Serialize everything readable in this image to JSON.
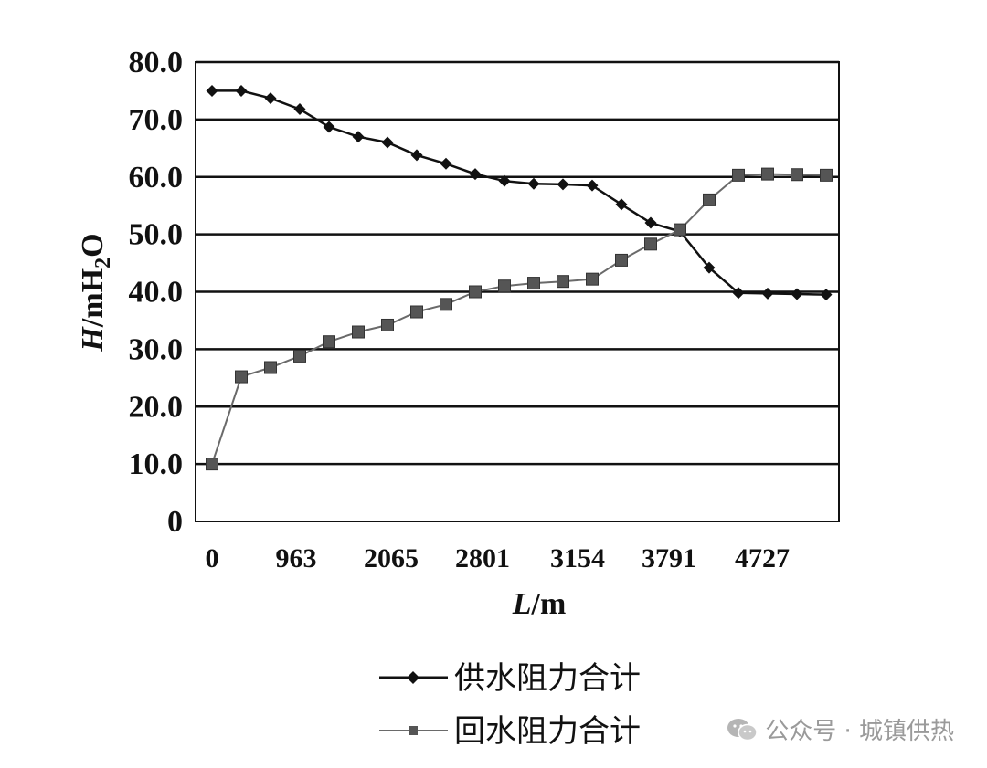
{
  "chart_data": {
    "type": "line",
    "ylim": [
      0,
      80
    ],
    "yticks": [
      "0",
      "10.0",
      "20.0",
      "30.0",
      "40.0",
      "50.0",
      "60.0",
      "70.0",
      "80.0"
    ],
    "xtick_labels": [
      "0",
      "963",
      "2065",
      "2801",
      "3154",
      "3791",
      "4727"
    ],
    "ylabel_italic": "H",
    "ylabel_unit": "/mH",
    "ylabel_sub": "2",
    "ylabel_tail": "O",
    "xlabel_italic": "L",
    "xlabel_unit": "/m",
    "grid": "horizontal",
    "n_points": 22,
    "series": [
      {
        "name": "供水阻力合计",
        "marker": "diamond",
        "color": "#111111",
        "values": [
          75.0,
          75.0,
          73.7,
          71.8,
          68.7,
          67.0,
          66.0,
          63.8,
          62.3,
          60.5,
          59.3,
          58.8,
          58.7,
          58.5,
          55.2,
          52.0,
          50.5,
          44.2,
          39.8,
          39.7,
          39.6,
          39.5
        ]
      },
      {
        "name": "回水阻力合计",
        "marker": "square",
        "color": "#6a6a6a",
        "values": [
          10.0,
          25.2,
          26.8,
          28.8,
          31.3,
          33.0,
          34.2,
          36.5,
          37.8,
          40.0,
          41.0,
          41.5,
          41.8,
          42.2,
          45.5,
          48.3,
          50.8,
          56.0,
          60.3,
          60.5,
          60.4,
          60.3
        ]
      }
    ]
  },
  "watermark": {
    "text": "公众号 · 城镇供热",
    "icon": "wechat-icon"
  }
}
